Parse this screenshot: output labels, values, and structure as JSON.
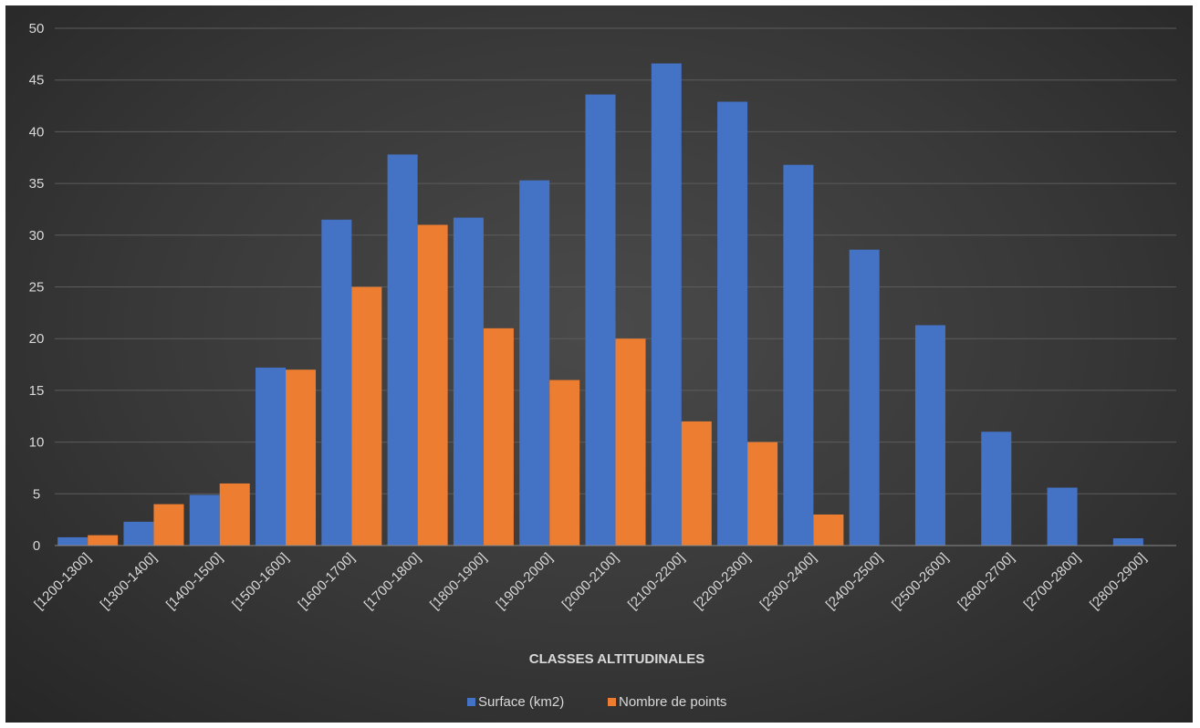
{
  "chart_data": {
    "type": "bar",
    "title": "",
    "xlabel": "CLASSES ALTITUDINALES",
    "ylabel": "",
    "ylim": [
      0,
      50
    ],
    "yticks": [
      0,
      5,
      10,
      15,
      20,
      25,
      30,
      35,
      40,
      45,
      50
    ],
    "grid": true,
    "legend_position": "bottom",
    "categories": [
      "[1200-1300]",
      "[1300-1400]",
      "[1400-1500]",
      "[1500-1600]",
      "[1600-1700]",
      "[1700-1800]",
      "[1800-1900]",
      "[1900-2000]",
      "[2000-2100]",
      "[2100-2200]",
      "[2200-2300]",
      "[2300-2400]",
      "[2400-2500]",
      "[2500-2600]",
      "[2600-2700]",
      "[2700-2800]",
      "[2800-2900]"
    ],
    "series": [
      {
        "name": "Surface (km2)",
        "color": "#4472c4",
        "values": [
          0.8,
          2.3,
          4.9,
          17.2,
          31.5,
          37.8,
          31.7,
          35.3,
          43.6,
          46.6,
          42.9,
          36.8,
          28.6,
          21.3,
          11.0,
          5.6,
          0.7
        ]
      },
      {
        "name": "Nombre de points",
        "color": "#ed7d31",
        "values": [
          1,
          4,
          6,
          17,
          25,
          31,
          21,
          16,
          20,
          12,
          10,
          3,
          0,
          0,
          0,
          0,
          0
        ]
      }
    ]
  }
}
